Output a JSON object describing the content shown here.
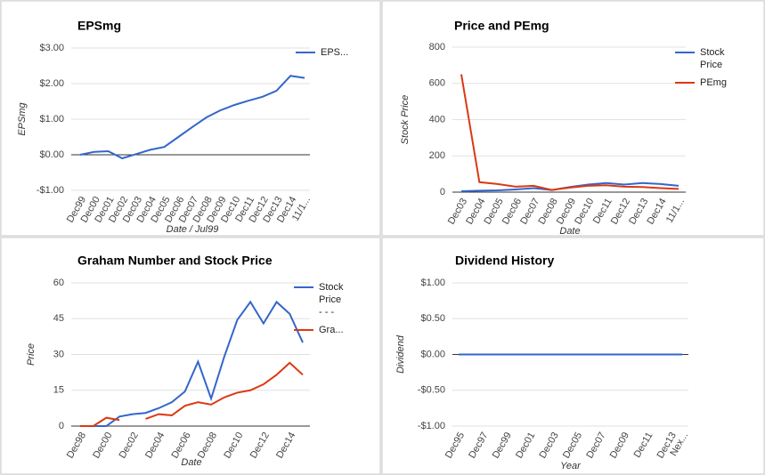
{
  "chart_data": [
    {
      "type": "line",
      "title": "EPSmg",
      "y_label": "EPSmg",
      "x_label": "Date / Jul99",
      "categories": [
        "Dec99",
        "Dec00",
        "Dec01",
        "Dec02",
        "Dec03",
        "Dec04",
        "Dec05",
        "Dec06",
        "Dec07",
        "Dec08",
        "Dec09",
        "Dec10",
        "Dec11",
        "Dec12",
        "Dec13",
        "Dec14",
        "11/1..."
      ],
      "series": [
        {
          "name": "EPS...",
          "color": "#3366cc",
          "values": [
            0.0,
            0.08,
            0.1,
            -0.1,
            0.02,
            0.14,
            0.22,
            0.5,
            0.78,
            1.05,
            1.25,
            1.4,
            1.52,
            1.63,
            1.8,
            2.22,
            2.16
          ]
        }
      ],
      "ylim": [
        -1,
        3
      ],
      "yticks": [
        {
          "value": 3,
          "label": "$3.00"
        },
        {
          "value": 2,
          "label": "$2.00"
        },
        {
          "value": 1,
          "label": "$1.00"
        },
        {
          "value": 0,
          "label": "$0.00"
        },
        {
          "value": -1,
          "label": "-$1.00"
        }
      ],
      "grid": true
    },
    {
      "type": "line",
      "title": "Price and PEmg",
      "y_label": "Stock Price",
      "x_label": "Date",
      "categories": [
        "Dec03",
        "Dec04",
        "Dec05",
        "Dec06",
        "Dec07",
        "Dec08",
        "Dec09",
        "Dec10",
        "Dec11",
        "Dec12",
        "Dec13",
        "Dec14",
        "11/1..."
      ],
      "series": [
        {
          "name": "Stock Price",
          "color": "#3366cc",
          "values": [
            5,
            8,
            10,
            15,
            22,
            12,
            28,
            42,
            50,
            42,
            50,
            45,
            35
          ]
        },
        {
          "name": "PEmg",
          "color": "#dc3912",
          "values": [
            650,
            55,
            45,
            30,
            35,
            12,
            25,
            35,
            38,
            30,
            28,
            22,
            18
          ]
        }
      ],
      "ylim": [
        0,
        800
      ],
      "yticks": [
        800,
        600,
        400,
        200,
        0
      ],
      "grid": true
    },
    {
      "type": "line",
      "title": "Graham Number and Stock Price",
      "y_label": "Price",
      "x_label": "Date",
      "categories": [
        "Dec98",
        null,
        "Dec00",
        null,
        "Dec02",
        null,
        "Dec04",
        null,
        "Dec06",
        null,
        "Dec08",
        null,
        "Dec10",
        null,
        "Dec12",
        null,
        "Dec14",
        null
      ],
      "series": [
        {
          "name": "Stock Price - - -",
          "color": "#3366cc",
          "values": [
            0,
            0,
            0,
            4,
            5,
            5.5,
            7.5,
            10,
            14.5,
            27,
            11.5,
            29,
            44.5,
            52,
            43,
            52,
            47,
            35
          ]
        },
        {
          "name": "Gra...",
          "color": "#dc3912",
          "values": [
            0,
            0,
            3.5,
            2.5,
            null,
            3,
            5,
            4.5,
            8.5,
            10,
            9,
            12,
            14,
            15,
            17.5,
            21.5,
            26.5,
            21.5
          ]
        }
      ],
      "ylim": [
        0,
        60
      ],
      "yticks": [
        60,
        45,
        30,
        15,
        0
      ],
      "grid": true
    },
    {
      "type": "line",
      "title": "Dividend History",
      "y_label": "Dividend",
      "x_label": "Year",
      "categories": [
        "Dec95",
        null,
        "Dec97",
        null,
        "Dec99",
        null,
        "Dec01",
        null,
        "Dec03",
        null,
        "Dec05",
        null,
        "Dec07",
        null,
        "Dec09",
        null,
        "Dec11",
        null,
        "Dec13",
        "Nex..."
      ],
      "series": [
        {
          "color": "#3366cc",
          "values": [
            0,
            0,
            0,
            0,
            0,
            0,
            0,
            0,
            0,
            0,
            0,
            0,
            0,
            0,
            0,
            0,
            0,
            0,
            0,
            0
          ]
        }
      ],
      "ylim": [
        -1,
        1
      ],
      "yticks": [
        {
          "value": 1,
          "label": "$1.00"
        },
        {
          "value": 0.5,
          "label": "$0.50"
        },
        {
          "value": 0,
          "label": "$0.00"
        },
        {
          "value": -0.5,
          "label": "-$0.50"
        },
        {
          "value": -1,
          "label": "-$1.00"
        }
      ],
      "grid": true
    }
  ]
}
